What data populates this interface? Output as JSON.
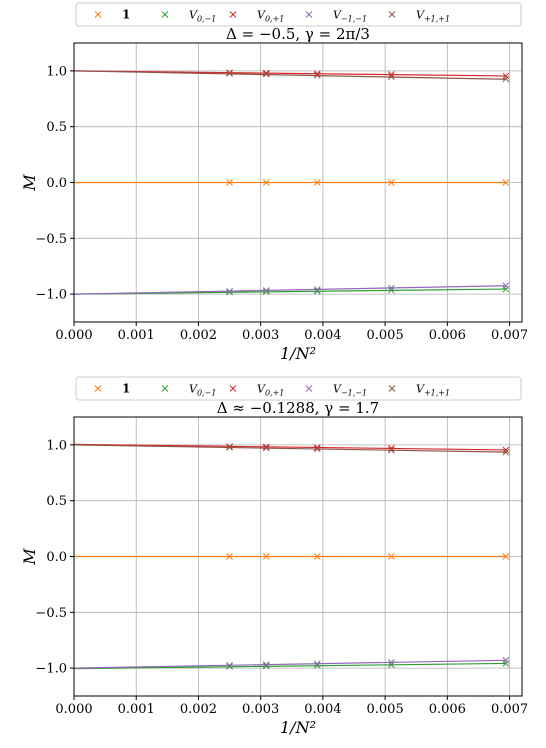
{
  "colors": {
    "identity": "#ff7f0e",
    "V_0_m1": "#2ca02c",
    "V_0_p1": "#d62728",
    "V_m1_m1": "#9467bd",
    "V_p1_p1": "#8c564b"
  },
  "chart_data": [
    {
      "type": "line",
      "title": "Δ = −0.5, γ = 2π/3",
      "xlabel": "1/N²",
      "ylabel": "M",
      "xlim": [
        0.0,
        0.0072
      ],
      "ylim": [
        -1.25,
        1.25
      ],
      "x_ticks": [
        "0.000",
        "0.001",
        "0.002",
        "0.003",
        "0.004",
        "0.005",
        "0.006",
        "0.007"
      ],
      "y_ticks": [
        "−1.0",
        "−0.5",
        "0.0",
        "0.5",
        "1.0"
      ],
      "grid": true,
      "legend_position": "top",
      "x": [
        0.0025,
        0.00309,
        0.00391,
        0.0051,
        0.00694
      ],
      "series": [
        {
          "name": "1",
          "color_key": "identity",
          "values": [
            0.0,
            0.0,
            0.0,
            0.0,
            0.0
          ],
          "fit": [
            0.0,
            0.0
          ]
        },
        {
          "name": "V0,−1",
          "color_key": "V_0_m1",
          "values": [
            -0.981,
            -0.977,
            -0.972,
            -0.965,
            -0.955
          ],
          "fit": [
            -1.0,
            -0.955
          ]
        },
        {
          "name": "V0,+1",
          "color_key": "V_0_p1",
          "values": [
            0.984,
            0.98,
            0.975,
            0.968,
            0.955
          ],
          "fit": [
            1.0,
            0.955
          ]
        },
        {
          "name": "V−1,−1",
          "color_key": "V_m1_m1",
          "values": [
            -0.975,
            -0.968,
            -0.959,
            -0.945,
            -0.925
          ],
          "fit": [
            -1.0,
            -0.925
          ]
        },
        {
          "name": "V+1,+1",
          "color_key": "V_p1_p1",
          "values": [
            0.978,
            0.971,
            0.962,
            0.949,
            0.929
          ],
          "fit": [
            1.0,
            0.925
          ]
        }
      ]
    },
    {
      "type": "line",
      "title": "Δ ≈ −0.1288, γ = 1.7",
      "xlabel": "1/N²",
      "ylabel": "M",
      "xlim": [
        0.0,
        0.0072
      ],
      "ylim": [
        -1.25,
        1.25
      ],
      "x_ticks": [
        "0.000",
        "0.001",
        "0.002",
        "0.003",
        "0.004",
        "0.005",
        "0.006",
        "0.007"
      ],
      "y_ticks": [
        "−1.0",
        "−0.5",
        "0.0",
        "0.5",
        "1.0"
      ],
      "grid": true,
      "legend_position": "top",
      "x": [
        0.0025,
        0.00309,
        0.00391,
        0.0051,
        0.00694
      ],
      "series": [
        {
          "name": "1",
          "color_key": "identity",
          "values": [
            0.0,
            0.0,
            0.0,
            0.0,
            0.0
          ],
          "fit": [
            0.0,
            0.0
          ]
        },
        {
          "name": "V0,−1",
          "color_key": "V_0_m1",
          "values": [
            -0.985,
            -0.981,
            -0.976,
            -0.97,
            -0.958
          ],
          "fit": [
            -1.005,
            -0.958
          ]
        },
        {
          "name": "V0,+1",
          "color_key": "V_0_p1",
          "values": [
            0.985,
            0.982,
            0.977,
            0.97,
            0.955
          ],
          "fit": [
            1.005,
            0.955
          ]
        },
        {
          "name": "V−1,−1",
          "color_key": "V_m1_m1",
          "values": [
            -0.975,
            -0.969,
            -0.961,
            -0.949,
            -0.93
          ],
          "fit": [
            -1.0,
            -0.93
          ]
        },
        {
          "name": "V+1,+1",
          "color_key": "V_p1_p1",
          "values": [
            0.979,
            0.973,
            0.965,
            0.953,
            0.935
          ],
          "fit": [
            1.0,
            0.935
          ]
        }
      ]
    }
  ]
}
